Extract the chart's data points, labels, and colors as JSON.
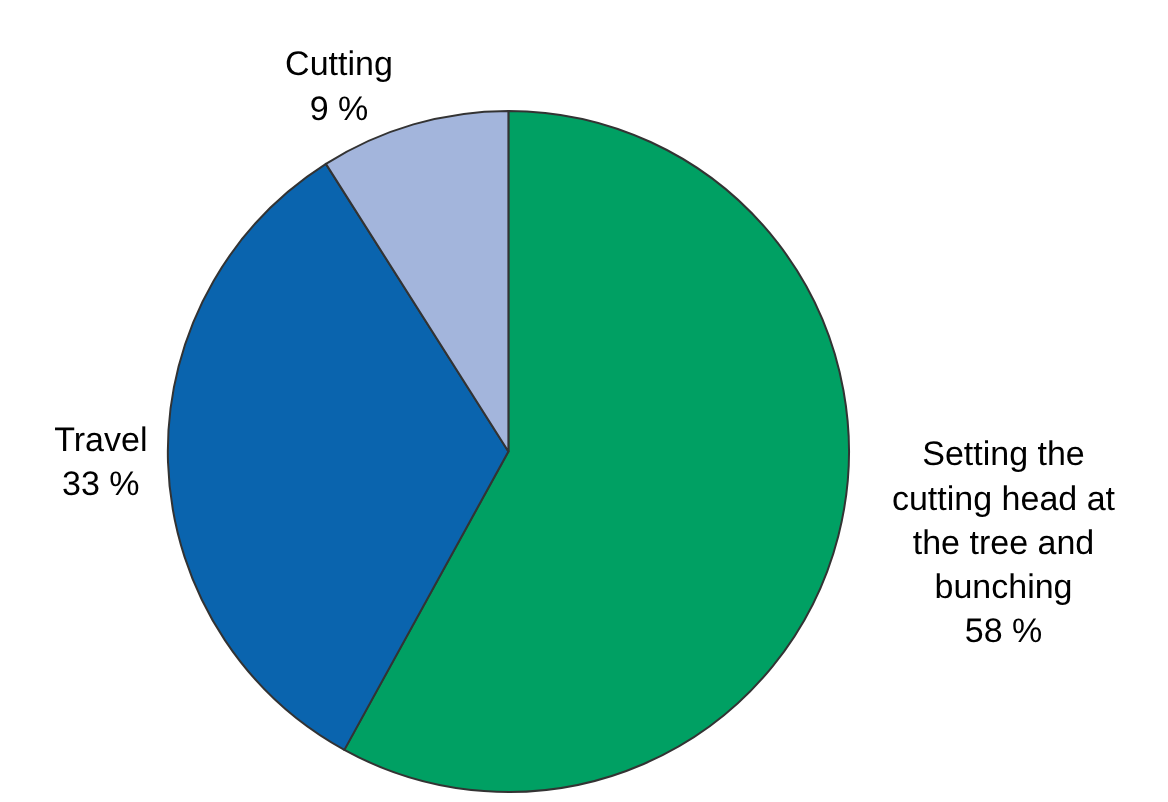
{
  "chart_data": {
    "type": "pie",
    "categories": [
      "Setting the cutting head at the tree and bunching",
      "Travel",
      "Cutting"
    ],
    "values": [
      58,
      33,
      9
    ],
    "value_labels": [
      "58 %",
      "33 %",
      "9 %"
    ],
    "colors": [
      "#00a063",
      "#0a64ae",
      "#a3b5dc"
    ],
    "legend": false
  }
}
